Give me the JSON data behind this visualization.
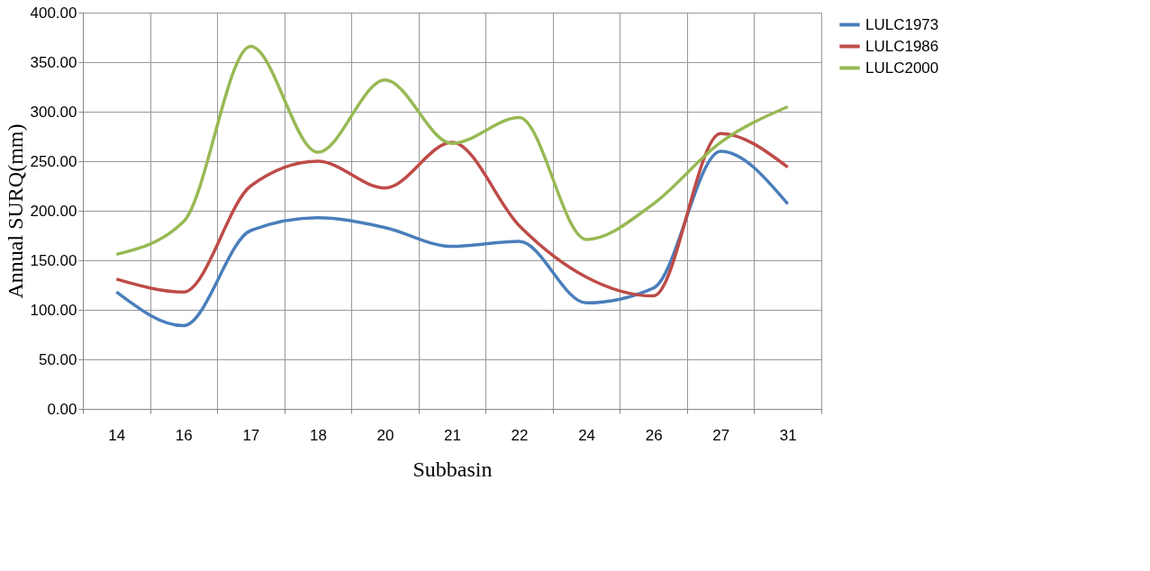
{
  "chart_data": {
    "type": "line",
    "xlabel": "Subbasin",
    "ylabel": "Annual SURQ(mm)",
    "categories": [
      "14",
      "16",
      "17",
      "18",
      "20",
      "21",
      "22",
      "24",
      "26",
      "27",
      "31"
    ],
    "series": [
      {
        "name": "LULC1973",
        "color": "#4a7ebb",
        "values": [
          118,
          84,
          180,
          193,
          183,
          164,
          169,
          107,
          122,
          260,
          207
        ]
      },
      {
        "name": "LULC1986",
        "color": "#be4b48",
        "values": [
          131,
          118,
          225,
          250,
          223,
          269,
          185,
          133,
          114,
          278,
          244
        ]
      },
      {
        "name": "LULC2000",
        "color": "#98b954",
        "values": [
          156,
          189,
          366,
          259,
          332,
          268,
          294,
          171,
          207,
          269,
          305
        ]
      }
    ],
    "ylim": [
      0,
      400
    ],
    "yticks": [
      {
        "value": 0,
        "label": "0.00"
      },
      {
        "value": 50,
        "label": "50.00"
      },
      {
        "value": 100,
        "label": "100.00"
      },
      {
        "value": 150,
        "label": "150.00"
      },
      {
        "value": 200,
        "label": "200.00"
      },
      {
        "value": 250,
        "label": "250.00"
      },
      {
        "value": 300,
        "label": "300.00"
      },
      {
        "value": 350,
        "label": "350.00"
      },
      {
        "value": 400,
        "label": "400.00"
      }
    ],
    "grid": true,
    "legend": "right",
    "marker": "none",
    "line_style": "solid"
  }
}
